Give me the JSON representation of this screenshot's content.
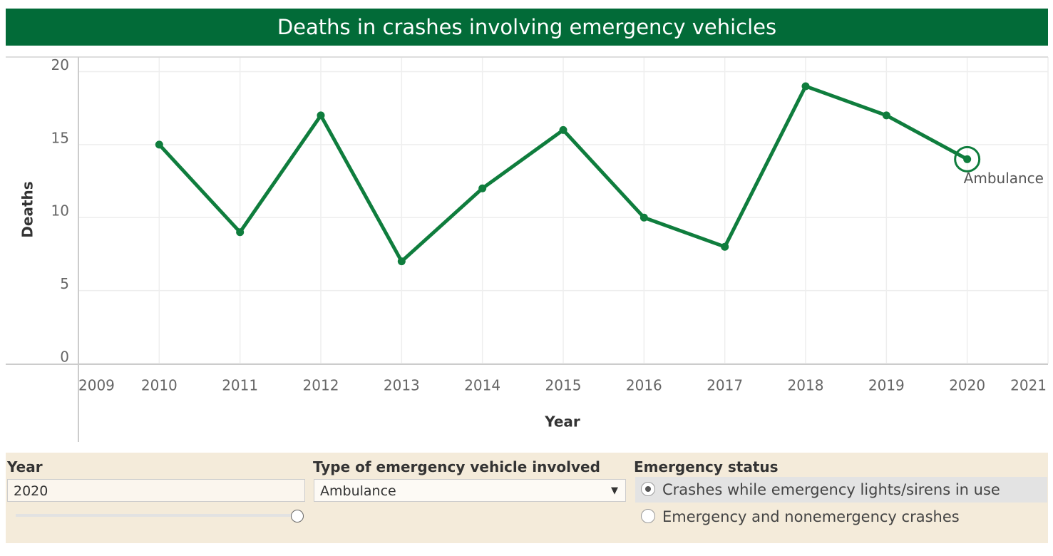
{
  "chart_data": {
    "type": "line",
    "title": "Deaths in crashes involving emergency vehicles",
    "x_label": "Year",
    "y_label": "Deaths",
    "x": [
      2010,
      2011,
      2012,
      2013,
      2014,
      2015,
      2016,
      2017,
      2018,
      2019,
      2020
    ],
    "values": [
      15,
      9,
      17,
      7,
      12,
      16,
      10,
      8,
      19,
      17,
      14
    ],
    "color": "#0f7d3d",
    "xlim": [
      2009,
      2021
    ],
    "xticks": [
      2009,
      2010,
      2011,
      2012,
      2013,
      2014,
      2015,
      2016,
      2017,
      2018,
      2019,
      2020,
      2021
    ],
    "ylim": [
      0,
      21
    ],
    "yticks": [
      0,
      5,
      10,
      15,
      20
    ],
    "grid": true,
    "annotation": "Ambulance"
  },
  "controls": {
    "year": {
      "label": "Year",
      "value": "2020"
    },
    "vehicle": {
      "label": "Type of emergency vehicle involved",
      "value": "Ambulance"
    },
    "status": {
      "label": "Emergency status",
      "options": [
        "Crashes while emergency lights/sirens in use",
        "Emergency and nonemergency crashes"
      ],
      "selected": 0
    }
  }
}
